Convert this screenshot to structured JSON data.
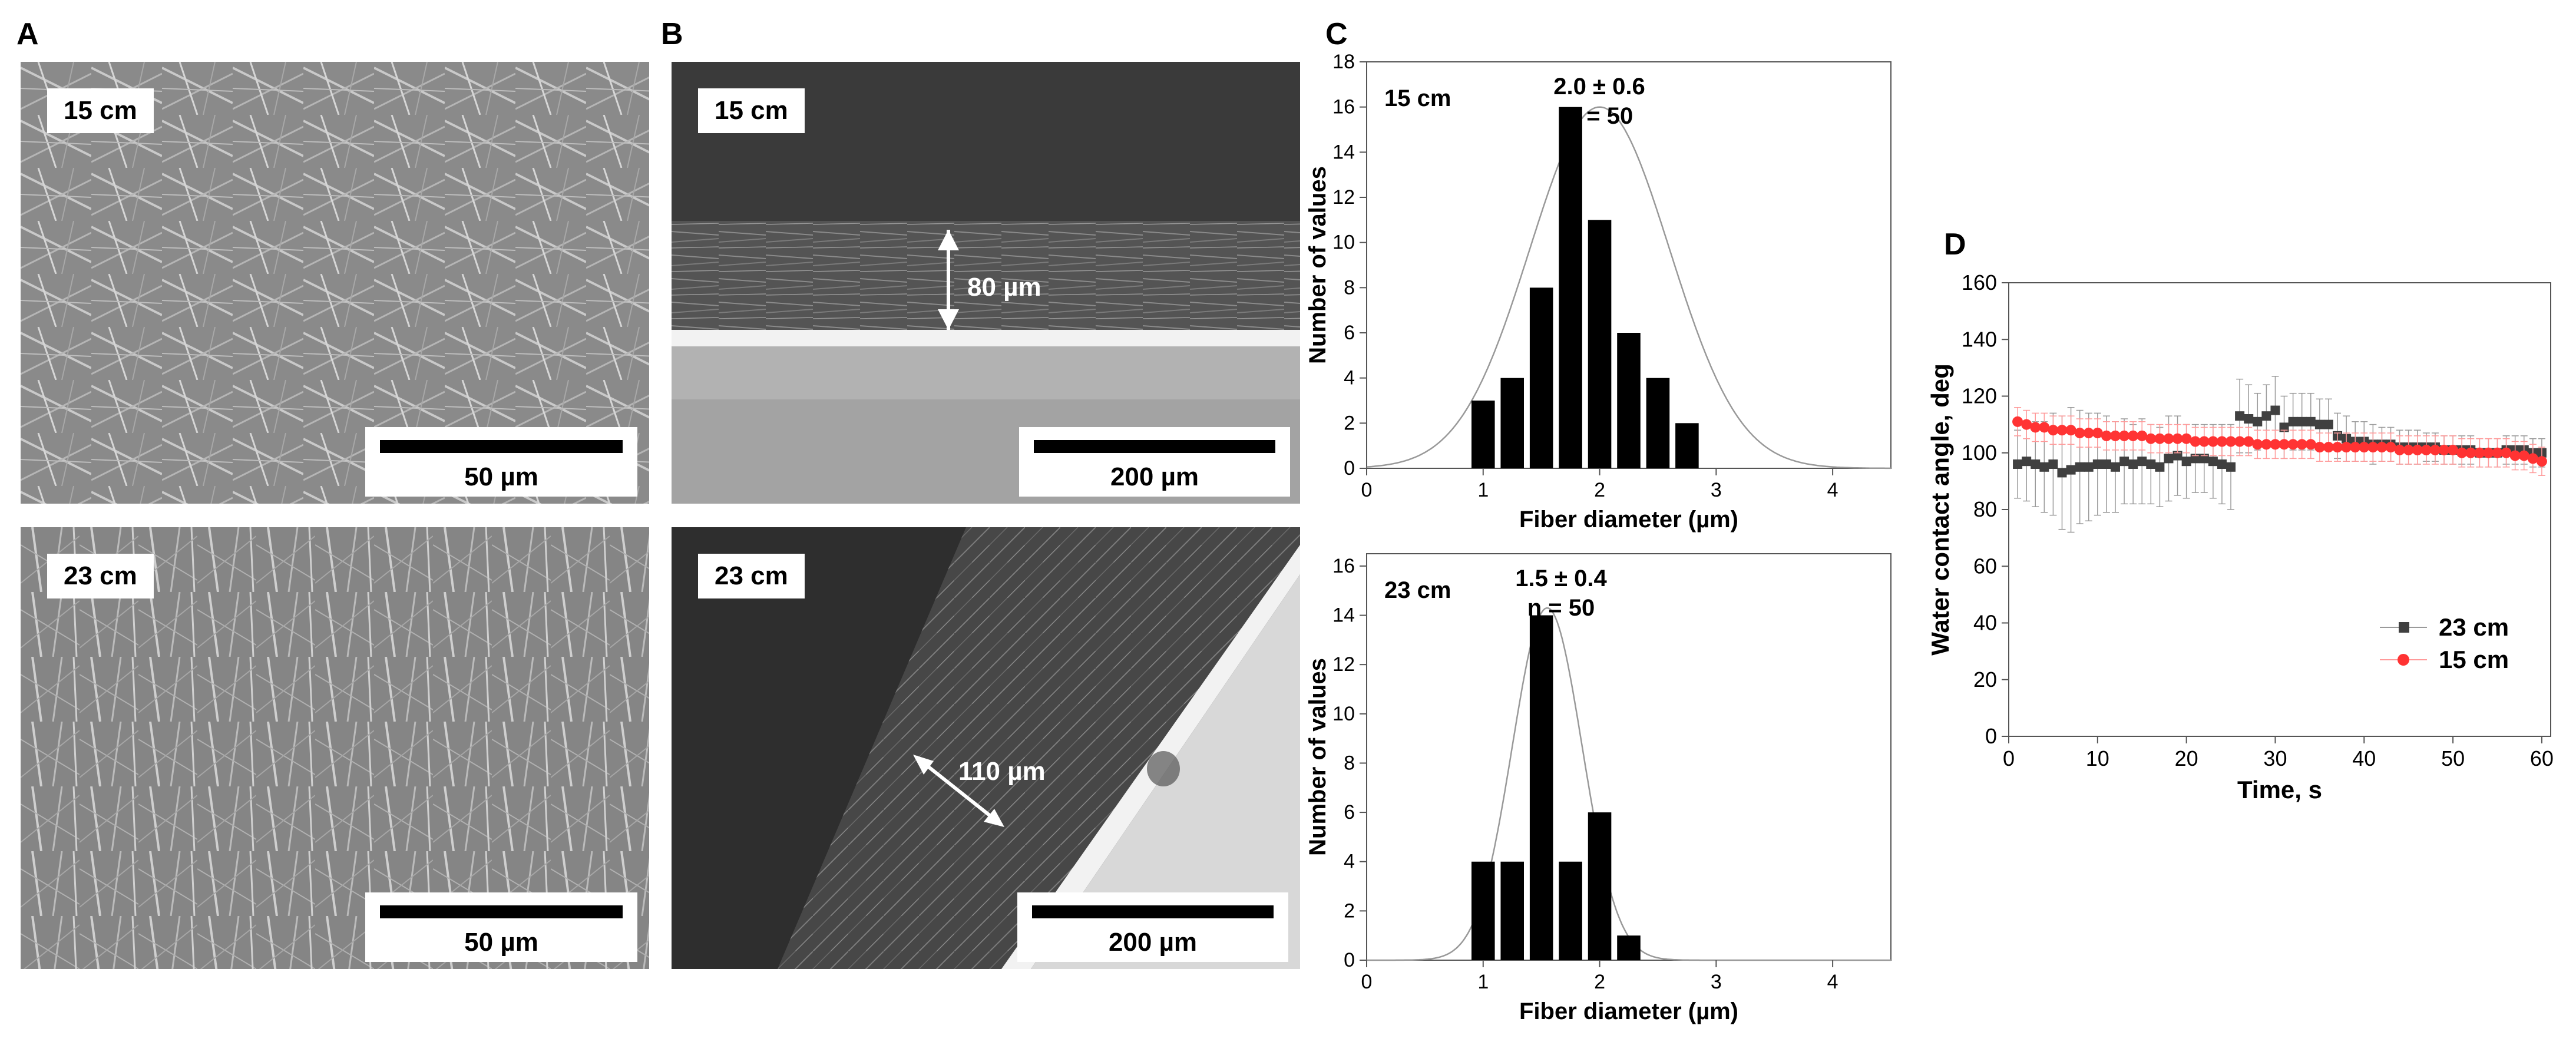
{
  "panels": {
    "A": {
      "letter": "A",
      "images": [
        {
          "label": "15 cm",
          "scale": "50 µm"
        },
        {
          "label": "23 cm",
          "scale": "50 µm"
        }
      ]
    },
    "B": {
      "letter": "B",
      "images": [
        {
          "label": "15 cm",
          "scale": "200 µm",
          "thickness": "80 µm"
        },
        {
          "label": "23 cm",
          "scale": "200 µm",
          "thickness": "110 µm"
        }
      ]
    },
    "C": {
      "letter": "C"
    },
    "D": {
      "letter": "D"
    }
  },
  "chart_data": [
    {
      "type": "bar",
      "panel": "C-top",
      "annotation_label": "15 cm",
      "annotation_stat": "2.0 ± 0.6",
      "annotation_n": "n = 50",
      "xlabel": "Fiber diameter (µm)",
      "ylabel": "Number of values",
      "xlim": [
        0,
        4.5
      ],
      "ylim": [
        0,
        18
      ],
      "xticks": [
        0,
        1,
        2,
        3,
        4
      ],
      "yticks": [
        0,
        2,
        4,
        6,
        8,
        10,
        12,
        14,
        16,
        18
      ],
      "bins": [
        1.0,
        1.25,
        1.5,
        1.75,
        2.0,
        2.25,
        2.5,
        2.75,
        3.0
      ],
      "values": [
        3,
        4,
        8,
        16,
        11,
        6,
        4,
        2,
        0
      ],
      "fit": {
        "kind": "normal",
        "mean": 2.0,
        "sd": 0.6,
        "peak": 16
      },
      "bar_color": "#000000",
      "fit_color": "#999999"
    },
    {
      "type": "bar",
      "panel": "C-bottom",
      "annotation_label": "23 cm",
      "annotation_stat": "1.5 ± 0.4",
      "annotation_n": "n = 50",
      "xlabel": "Fiber diameter (µm)",
      "ylabel": "Number of values",
      "xlim": [
        0,
        4.5
      ],
      "ylim": [
        0,
        16.5
      ],
      "xticks": [
        0,
        1,
        2,
        3,
        4
      ],
      "yticks": [
        0,
        2,
        4,
        6,
        8,
        10,
        12,
        14,
        16
      ],
      "bins": [
        1.0,
        1.25,
        1.5,
        1.75,
        2.0,
        2.25,
        2.5
      ],
      "values": [
        4,
        4,
        14,
        4,
        6,
        1,
        0
      ],
      "fit": {
        "kind": "normal",
        "mean": 1.55,
        "sd": 0.3,
        "peak": 14.3
      },
      "bar_color": "#000000",
      "fit_color": "#999999"
    },
    {
      "type": "scatter",
      "panel": "D",
      "xlabel": "Time, s",
      "ylabel": "Water contact angle, deg",
      "xlim": [
        0,
        61
      ],
      "ylim": [
        0,
        160
      ],
      "xticks": [
        0,
        10,
        20,
        30,
        40,
        50,
        60
      ],
      "yticks": [
        0,
        20,
        40,
        60,
        80,
        100,
        120,
        140,
        160
      ],
      "legend_position": "bottom-right",
      "series": [
        {
          "name": "23 cm",
          "marker": "square",
          "color": "#404040",
          "x": [
            1,
            2,
            3,
            4,
            5,
            6,
            7,
            8,
            9,
            10,
            11,
            12,
            13,
            14,
            15,
            16,
            17,
            18,
            19,
            20,
            21,
            22,
            23,
            24,
            25,
            26,
            27,
            28,
            29,
            30,
            31,
            32,
            33,
            34,
            35,
            36,
            37,
            38,
            39,
            40,
            41,
            42,
            43,
            44,
            45,
            46,
            47,
            48,
            49,
            50,
            51,
            52,
            53,
            54,
            55,
            56,
            57,
            58,
            59,
            60
          ],
          "y": [
            96,
            97,
            96,
            95,
            96,
            93,
            94,
            95,
            95,
            96,
            96,
            95,
            97,
            96,
            97,
            96,
            95,
            98,
            99,
            97,
            98,
            98,
            97,
            96,
            95,
            113,
            112,
            111,
            113,
            115,
            109,
            111,
            111,
            111,
            110,
            110,
            106,
            105,
            104,
            104,
            103,
            103,
            103,
            102,
            102,
            102,
            102,
            102,
            101,
            101,
            101,
            101,
            100,
            100,
            100,
            101,
            101,
            101,
            100,
            100
          ],
          "err": [
            12,
            14,
            15,
            16,
            18,
            20,
            22,
            20,
            19,
            18,
            17,
            16,
            15,
            14,
            15,
            14,
            14,
            15,
            14,
            13,
            12,
            12,
            13,
            14,
            15,
            13,
            12,
            10,
            11,
            12,
            11,
            10,
            10,
            10,
            9,
            9,
            8,
            8,
            7,
            7,
            7,
            6,
            6,
            6,
            6,
            6,
            5,
            5,
            5,
            5,
            5,
            5,
            5,
            5,
            5,
            5,
            5,
            5,
            5,
            5
          ]
        },
        {
          "name": "15 cm",
          "marker": "circle",
          "color": "#ff3333",
          "x": [
            1,
            2,
            3,
            4,
            5,
            6,
            7,
            8,
            9,
            10,
            11,
            12,
            13,
            14,
            15,
            16,
            17,
            18,
            19,
            20,
            21,
            22,
            23,
            24,
            25,
            26,
            27,
            28,
            29,
            30,
            31,
            32,
            33,
            34,
            35,
            36,
            37,
            38,
            39,
            40,
            41,
            42,
            43,
            44,
            45,
            46,
            47,
            48,
            49,
            50,
            51,
            52,
            53,
            54,
            55,
            56,
            57,
            58,
            59,
            60
          ],
          "y": [
            111,
            110,
            109,
            109,
            108,
            108,
            108,
            107,
            107,
            107,
            106,
            106,
            106,
            106,
            106,
            105,
            105,
            105,
            105,
            105,
            104,
            104,
            104,
            104,
            104,
            104,
            104,
            103,
            103,
            103,
            103,
            103,
            103,
            103,
            102,
            102,
            102,
            102,
            102,
            102,
            102,
            102,
            102,
            101,
            101,
            101,
            101,
            101,
            101,
            101,
            100,
            100,
            100,
            100,
            100,
            100,
            99,
            99,
            98,
            97
          ],
          "err": [
            5,
            5,
            5,
            5,
            5,
            5,
            5,
            5,
            5,
            5,
            5,
            5,
            5,
            5,
            5,
            5,
            5,
            5,
            5,
            5,
            5,
            5,
            5,
            5,
            5,
            5,
            5,
            5,
            5,
            5,
            5,
            5,
            5,
            5,
            5,
            5,
            5,
            5,
            5,
            5,
            5,
            5,
            5,
            5,
            5,
            5,
            5,
            5,
            5,
            5,
            5,
            5,
            5,
            5,
            5,
            5,
            5,
            5,
            5,
            5
          ]
        }
      ]
    }
  ]
}
